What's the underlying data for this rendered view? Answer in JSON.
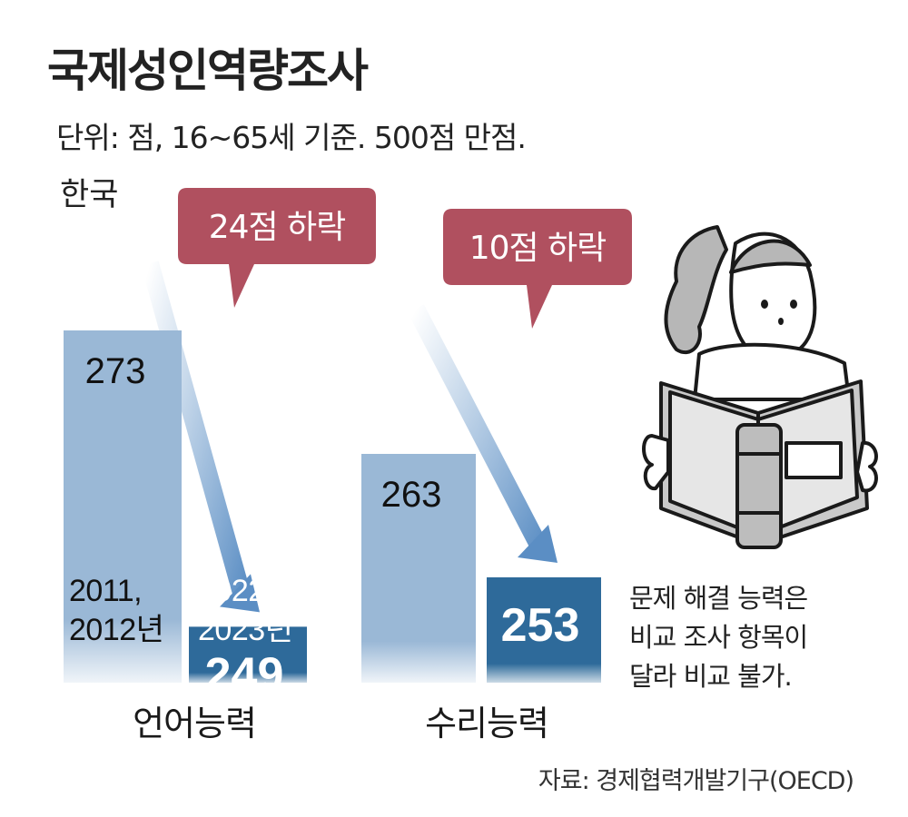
{
  "title": "국제성인역량조사",
  "subtitle": "단위: 점, 16~65세 기준. 500점 만점.",
  "country": "한국",
  "note_lines": [
    "문제 해결 능력은",
    "비교 조사 항목이",
    "달라 비교 불가."
  ],
  "source": "자료: 경제협력개발기구(OECD)",
  "colors": {
    "bar_old": "#9ab8d6",
    "bar_new": "#2e6a9a",
    "callout": "#b0505f",
    "arrow": "#6e9ccb"
  },
  "chart_data": {
    "type": "bar",
    "categories": [
      "언어능력",
      "수리능력"
    ],
    "series": [
      {
        "name": "2011,\n2012년",
        "values": [
          273,
          263
        ]
      },
      {
        "name": "2022,\n2023년",
        "values": [
          249,
          253
        ]
      }
    ],
    "series_labels": [
      [
        "2011,",
        "2012년"
      ],
      [
        "2022,",
        "2023년"
      ]
    ],
    "callouts": [
      "24점 하락",
      "10점 하락"
    ],
    "ymax": 500
  }
}
